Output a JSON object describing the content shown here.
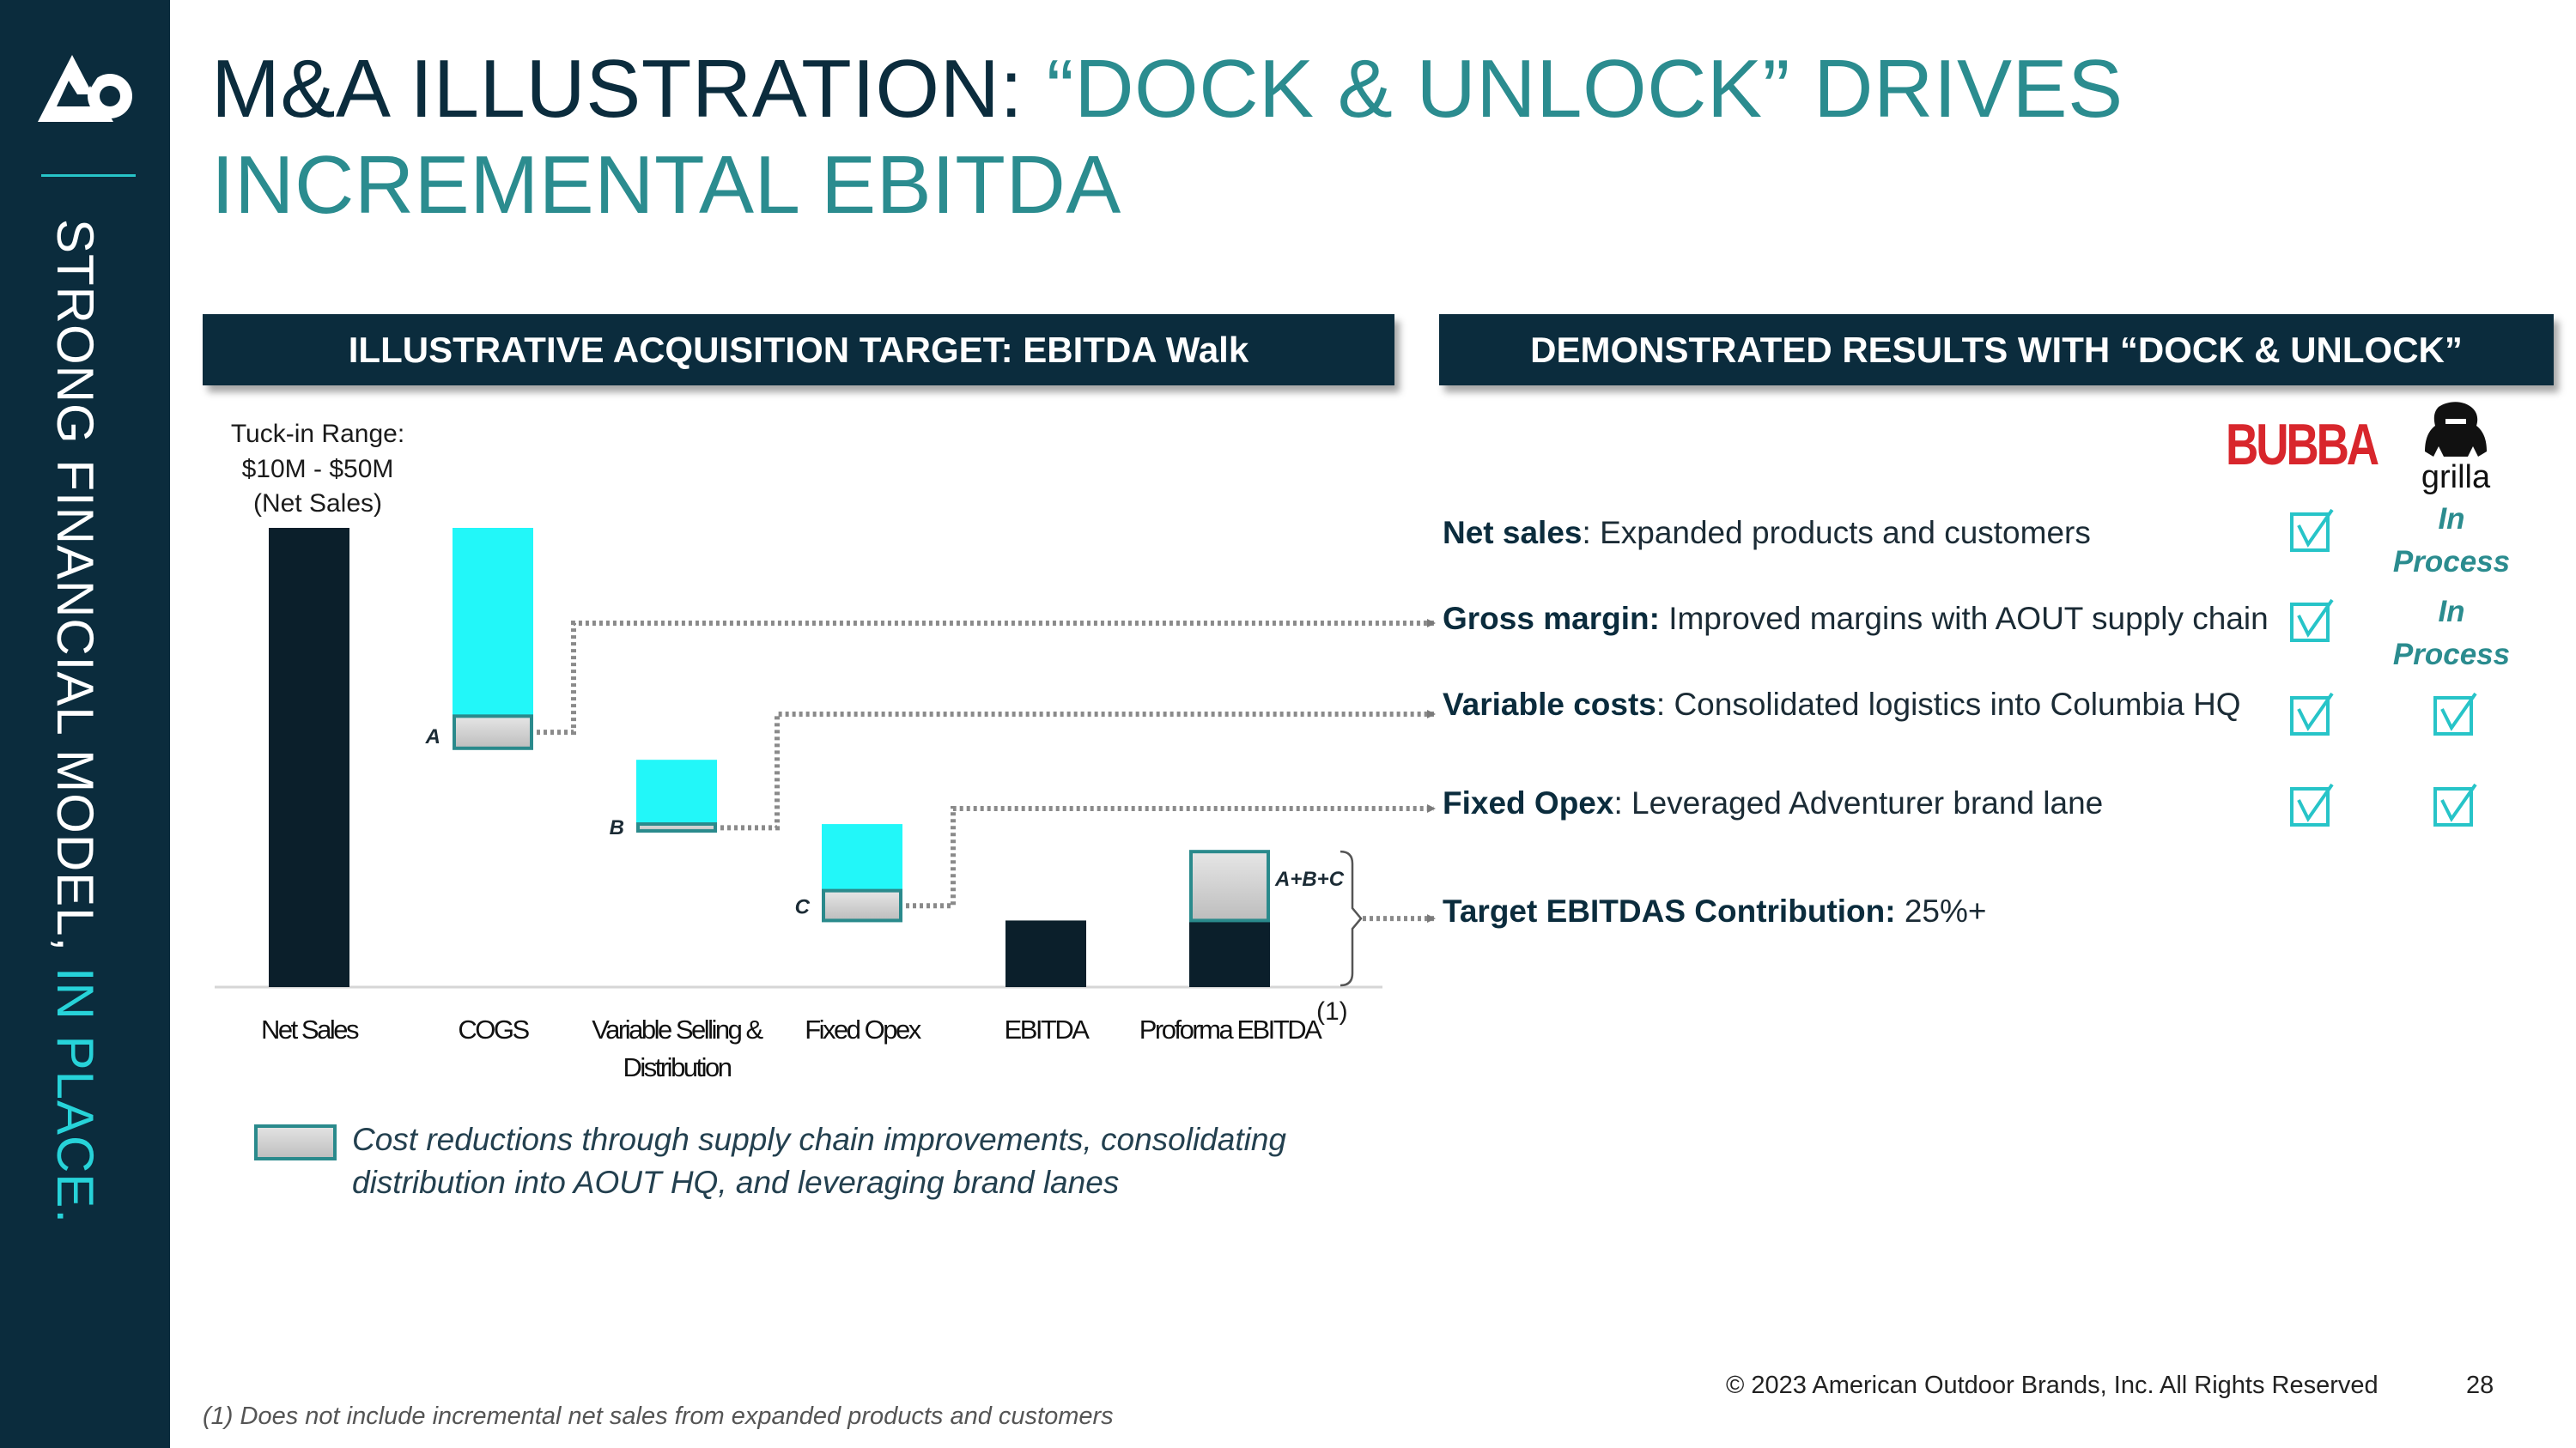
{
  "sidebar": {
    "text_main": "STRONG FINANCIAL MODEL, ",
    "text_accent": "IN PLACE."
  },
  "title": {
    "dark": "M&A ILLUSTRATION: ",
    "teal": "“DOCK & UNLOCK” DRIVES INCREMENTAL EBITDA"
  },
  "left_header": "ILLUSTRATIVE ACQUISITION TARGET: EBITDA Walk",
  "right_header": "DEMONSTRATED RESULTS WITH “DOCK & UNLOCK”",
  "tuck_in": [
    "Tuck-in Range:",
    "$10M - $50M",
    "(Net Sales)"
  ],
  "chart_data": {
    "type": "bar",
    "subtype": "waterfall (illustrative, no numeric axis)",
    "categories": [
      "Net Sales",
      "COGS",
      "Variable Selling & Distribution",
      "Fixed Opex",
      "EBITDA",
      "Proforma EBITDA"
    ],
    "category_labels": [
      [
        "Net Sales"
      ],
      [
        "COGS"
      ],
      [
        "Variable Selling &",
        "Distribution"
      ],
      [
        "Fixed Opex"
      ],
      [
        "EBITDA"
      ],
      [
        "Proforma EBITDA"
      ]
    ],
    "footnote_marker": "(1)",
    "ylim": [
      0,
      100
    ],
    "series": [
      {
        "id": "base",
        "color": "#0b1f2b",
        "values": [
          100,
          null,
          null,
          null,
          14.5,
          14.5
        ]
      },
      {
        "id": "cost_step",
        "color": "#22f7f9",
        "ranges": [
          null,
          [
            59,
            100
          ],
          [
            35.5,
            49.5
          ],
          [
            14.5,
            35.5
          ],
          null,
          null
        ]
      },
      {
        "id": "cost_reduction",
        "color": "#c9c9c9",
        "ranges": [
          null,
          [
            52,
            59
          ],
          [
            34,
            35.5
          ],
          [
            14.5,
            21
          ],
          null,
          [
            14.5,
            29.5
          ]
        ]
      }
    ],
    "annotations": [
      {
        "label": "A",
        "category": "COGS"
      },
      {
        "label": "B",
        "category": "Variable Selling & Distribution"
      },
      {
        "label": "C",
        "category": "Fixed Opex"
      },
      {
        "label": "A+B+C",
        "category": "Proforma EBITDA"
      }
    ],
    "grid": false,
    "legend": {
      "position": "bottom-left",
      "text": "Cost reductions through supply chain improvements, consolidating distribution into AOUT HQ, and leveraging brand lanes"
    }
  },
  "legend_lines": [
    "Cost reductions through supply chain improvements, consolidating",
    "distribution into AOUT HQ, and leveraging brand lanes"
  ],
  "brands": [
    {
      "name": "BUBBA",
      "icon": "bubba-logo",
      "color": "#d8262c"
    },
    {
      "name": "grilla",
      "icon": "grilla-gorilla-logo",
      "color": "#111111"
    }
  ],
  "metrics": [
    {
      "key": "Net sales",
      "sep": ":  ",
      "text": "Expanded products and customers",
      "bubba": "check",
      "grilla": "In Process"
    },
    {
      "key": "Gross margin:",
      "sep": "  ",
      "text": "Improved margins with AOUT supply chain",
      "bubba": "check",
      "grilla": "In Process"
    },
    {
      "key": "Variable costs",
      "sep": ":  ",
      "text": "Consolidated logistics into Columbia HQ",
      "bubba": "check",
      "grilla": "check"
    },
    {
      "key": "Fixed Opex",
      "sep": ":  ",
      "text": "Leveraged Adventurer brand lane",
      "bubba": "check",
      "grilla": "check"
    },
    {
      "key": "Target EBITDAS Contribution:",
      "sep": " ",
      "text": "25%+"
    }
  ],
  "in_process": [
    "In",
    "Process"
  ],
  "colors": {
    "navy": "#0b2c3d",
    "teal": "#2b8c8f",
    "cyan": "#22f7f9",
    "check": "#27c4c8"
  },
  "footnote": "(1) Does not include incremental net sales from expanded products and customers",
  "copyright": "© 2023 American Outdoor Brands, Inc. All Rights Reserved",
  "page_number": "28"
}
